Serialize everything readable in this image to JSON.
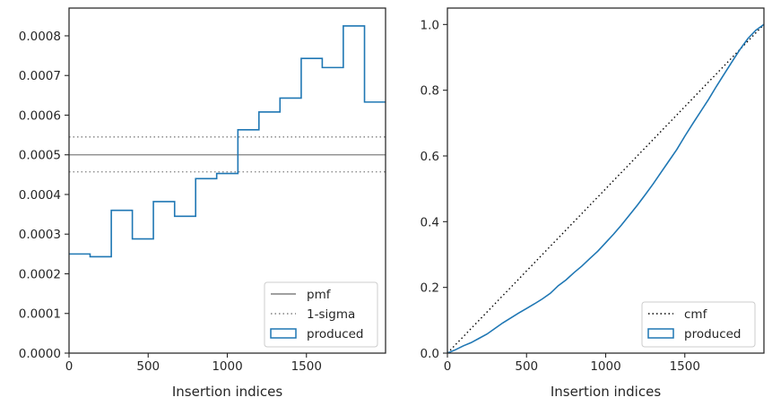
{
  "chart_data": [
    {
      "type": "step",
      "xlabel": "Insertion indices",
      "ylabel": "",
      "xlim": [
        0,
        2000
      ],
      "ylim": [
        0,
        0.00087
      ],
      "xticks": [
        0,
        500,
        1000,
        1500
      ],
      "xtick_labels": [
        "0",
        "500",
        "1000",
        "1500"
      ],
      "yticks": [
        0,
        0.0001,
        0.0002,
        0.0003,
        0.0004,
        0.0005,
        0.0006,
        0.0007,
        0.0008
      ],
      "ytick_labels": [
        "0.0000",
        "0.0001",
        "0.0002",
        "0.0003",
        "0.0004",
        "0.0005",
        "0.0006",
        "0.0007",
        "0.0008"
      ],
      "grid": false,
      "legend_position": "lower-right",
      "hlines": [
        {
          "name": "pmf",
          "y": 0.0005,
          "style": "solid",
          "color": "#808080"
        },
        {
          "name": "1-sigma",
          "y": 0.000545,
          "style": "dotted",
          "color": "#808080"
        },
        {
          "name": "1-sigma",
          "y": 0.000457,
          "style": "dotted",
          "color": "#808080",
          "hide_legend": true
        }
      ],
      "series": [
        {
          "name": "produced",
          "color": "#1f77b4",
          "bin_edges": [
            0,
            133,
            267,
            400,
            533,
            667,
            800,
            933,
            1067,
            1200,
            1333,
            1467,
            1600,
            1733,
            1867,
            2000
          ],
          "values": [
            0.00025,
            0.000243,
            0.00036,
            0.000288,
            0.000382,
            0.000345,
            0.00044,
            0.000453,
            0.000563,
            0.000608,
            0.000643,
            0.000743,
            0.00072,
            0.000825,
            0.000633
          ]
        }
      ],
      "legend": [
        {
          "label": "pmf",
          "kind": "line-solid",
          "color": "#808080"
        },
        {
          "label": "1-sigma",
          "kind": "line-dotted",
          "color": "#808080"
        },
        {
          "label": "produced",
          "kind": "patch",
          "color": "#1f77b4"
        }
      ]
    },
    {
      "type": "line",
      "xlabel": "Insertion indices",
      "ylabel": "",
      "xlim": [
        0,
        2000
      ],
      "ylim": [
        0,
        1.05
      ],
      "xticks": [
        0,
        500,
        1000,
        1500
      ],
      "xtick_labels": [
        "0",
        "500",
        "1000",
        "1500"
      ],
      "yticks": [
        0,
        0.2,
        0.4,
        0.6,
        0.8,
        1.0
      ],
      "ytick_labels": [
        "0.0",
        "0.2",
        "0.4",
        "0.6",
        "0.8",
        "1.0"
      ],
      "grid": false,
      "legend_position": "lower-right",
      "series": [
        {
          "name": "cmf",
          "style": "dotted",
          "color": "#000000",
          "x": [
            0,
            2000
          ],
          "y": [
            0,
            1.0
          ]
        },
        {
          "name": "produced",
          "style": "solid",
          "color": "#1f77b4",
          "x": [
            0,
            50,
            100,
            150,
            200,
            250,
            300,
            350,
            400,
            450,
            500,
            550,
            600,
            650,
            700,
            750,
            800,
            850,
            900,
            950,
            1000,
            1050,
            1100,
            1150,
            1200,
            1250,
            1300,
            1350,
            1400,
            1450,
            1500,
            1550,
            1600,
            1650,
            1700,
            1750,
            1800,
            1850,
            1900,
            1950,
            2000
          ],
          "y": [
            0,
            0.01,
            0.022,
            0.032,
            0.045,
            0.058,
            0.075,
            0.092,
            0.107,
            0.122,
            0.136,
            0.15,
            0.165,
            0.182,
            0.205,
            0.223,
            0.245,
            0.265,
            0.288,
            0.31,
            0.336,
            0.362,
            0.39,
            0.42,
            0.45,
            0.482,
            0.515,
            0.55,
            0.585,
            0.62,
            0.66,
            0.698,
            0.735,
            0.772,
            0.812,
            0.85,
            0.888,
            0.925,
            0.958,
            0.983,
            1.0
          ]
        }
      ],
      "legend": [
        {
          "label": "cmf",
          "kind": "line-dotted",
          "color": "#000000"
        },
        {
          "label": "produced",
          "kind": "patch",
          "color": "#1f77b4"
        }
      ]
    }
  ]
}
